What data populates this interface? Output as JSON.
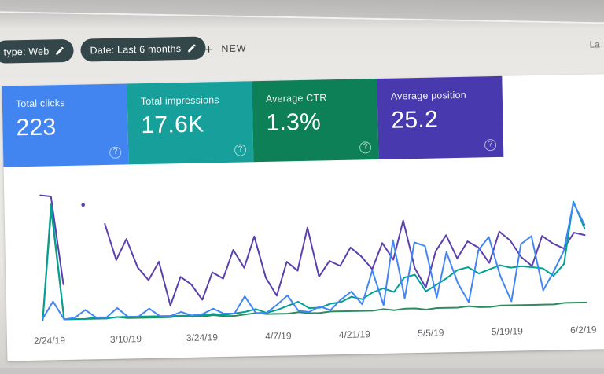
{
  "window": {
    "last_updated_fragment": "La"
  },
  "toolbar": {
    "chips": [
      {
        "label": "type: Web"
      },
      {
        "label": "Date: Last 6 months"
      }
    ],
    "add_glyph": "+",
    "new_button_label": "NEW"
  },
  "icons": {
    "help_glyph": "?"
  },
  "cards": [
    {
      "label": "Total clicks",
      "value": "223",
      "color": "#4284f0"
    },
    {
      "label": "Total impressions",
      "value": "17.6K",
      "color": "#17a09b"
    },
    {
      "label": "Average CTR",
      "value": "1.3%",
      "color": "#0d8057"
    },
    {
      "label": "Average position",
      "value": "25.2",
      "color": "#4939ae"
    }
  ],
  "chart_data": {
    "type": "line",
    "x_labels": [
      "2/24/19",
      "3/10/19",
      "3/24/19",
      "4/7/19",
      "4/21/19",
      "5/5/19",
      "5/19/19",
      "6/2/19"
    ],
    "x_range": [
      "2/24/19",
      "6/2/19"
    ],
    "points_per_step": "one point every 2 days",
    "grid": false,
    "legend": "none (colors match KPI cards)",
    "y_axis": "hidden",
    "values_scale": "percent of plot height, 0 = baseline, 100 = top; null = gap in line",
    "series": [
      {
        "name": "Average position",
        "color": "#5b3fae",
        "values": [
          97,
          96,
          28,
          null,
          89,
          null,
          74,
          46,
          62,
          40,
          30,
          44,
          10,
          32,
          26,
          14,
          35,
          30,
          52,
          38,
          62,
          30,
          16,
          42,
          35,
          68,
          30,
          42,
          38,
          52,
          45,
          35,
          55,
          42,
          72,
          35,
          20,
          48,
          60,
          42,
          55,
          50,
          38,
          62,
          55,
          42,
          35,
          58,
          52,
          48,
          60,
          58
        ]
      },
      {
        "name": "Average CTR",
        "color": "#2c8c5e",
        "values": [
          1,
          86,
          1,
          1,
          1,
          1,
          1,
          2,
          1,
          1,
          1,
          1,
          1,
          2,
          1,
          1,
          2,
          1,
          1,
          2,
          3,
          2,
          2,
          2,
          3,
          2,
          2,
          3,
          3,
          3,
          3,
          3,
          4,
          3,
          4,
          4,
          3,
          4,
          4,
          4,
          5,
          4,
          4,
          5,
          5,
          5,
          5,
          5,
          5,
          6,
          6,
          6
        ]
      },
      {
        "name": "Total impressions",
        "color": "#00a095",
        "values": [
          1,
          90,
          1,
          1,
          1,
          2,
          1,
          2,
          2,
          2,
          2,
          2,
          2,
          2,
          2,
          2,
          3,
          2,
          3,
          4,
          6,
          3,
          5,
          8,
          11,
          6,
          6,
          9,
          10,
          14,
          12,
          17,
          20,
          17,
          28,
          30,
          17,
          22,
          27,
          33,
          35,
          30,
          33,
          36,
          34,
          35,
          34,
          33,
          27,
          36,
          84,
          63
        ]
      },
      {
        "name": "Total clicks",
        "color": "#4285f4",
        "values": [
          2,
          15,
          1,
          2,
          8,
          2,
          2,
          9,
          2,
          2,
          8,
          2,
          2,
          5,
          2,
          3,
          7,
          3,
          3,
          16,
          3,
          3,
          9,
          16,
          4,
          3,
          7,
          4,
          12,
          18,
          8,
          34,
          7,
          57,
          12,
          55,
          52,
          12,
          47,
          23,
          8,
          48,
          58,
          28,
          8,
          52,
          58,
          16,
          30,
          46,
          83,
          66
        ]
      }
    ]
  }
}
